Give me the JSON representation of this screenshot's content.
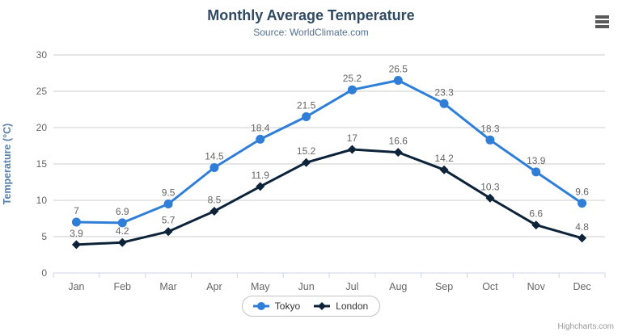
{
  "chart": {
    "title": "Monthly Average Temperature",
    "subtitle": "Source: WorldClimate.com",
    "credits": "Highcharts.com"
  },
  "chart_data": {
    "type": "line",
    "title": "Monthly Average Temperature",
    "subtitle": "Source: WorldClimate.com",
    "categories": [
      "Jan",
      "Feb",
      "Mar",
      "Apr",
      "May",
      "Jun",
      "Jul",
      "Aug",
      "Sep",
      "Oct",
      "Nov",
      "Dec"
    ],
    "series": [
      {
        "name": "Tokyo",
        "color": "#2f7ed8",
        "marker": "circle",
        "values": [
          7,
          6.9,
          9.5,
          14.5,
          18.4,
          21.5,
          25.2,
          26.5,
          23.3,
          18.3,
          13.9,
          9.6
        ]
      },
      {
        "name": "London",
        "color": "#0d233a",
        "marker": "diamond",
        "values": [
          3.9,
          4.2,
          5.7,
          8.5,
          11.9,
          15.2,
          17,
          16.6,
          14.2,
          10.3,
          6.6,
          4.8
        ]
      }
    ],
    "xlabel": "",
    "ylabel": "Temperature (°C)",
    "ylim": [
      0,
      30
    ],
    "ytick_interval": 5,
    "grid": "horizontal",
    "legend_position": "bottom",
    "data_labels": true
  },
  "colors": {
    "gridline": "#cccccc",
    "axis_line": "#ccd6eb",
    "tick_label": "#666666",
    "data_label": "#666666",
    "title": "#2f4a62",
    "subtitle": "#54708e",
    "axis_title": "#5b80a7",
    "legend_text": "#333333",
    "credits": "#999999",
    "menu_icon": "#595959"
  }
}
